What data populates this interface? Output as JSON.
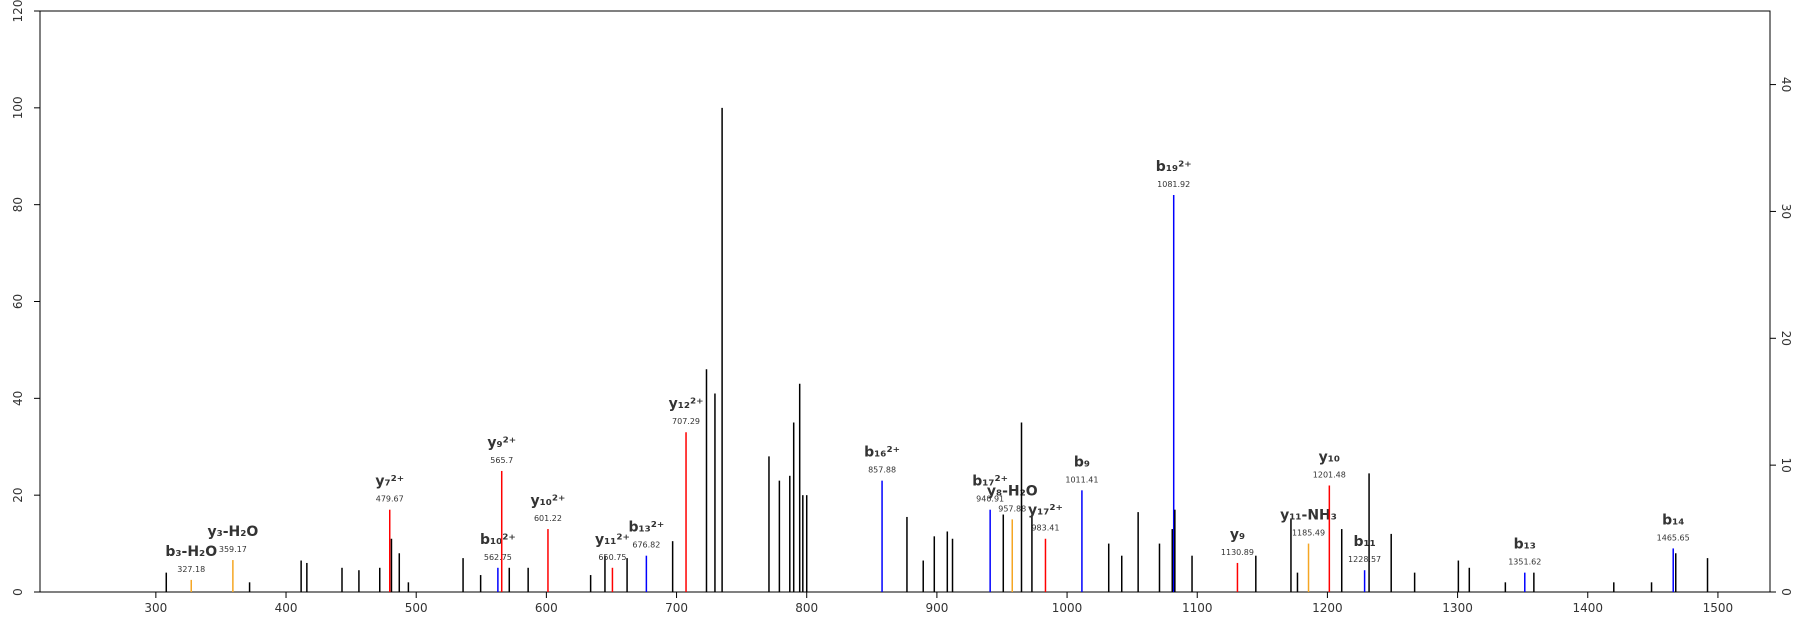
{
  "chart_data": {
    "type": "stem",
    "x": [
      308,
      327.18,
      359.17,
      372,
      411.6,
      416,
      443,
      456,
      472,
      479.67,
      481,
      487,
      494,
      536,
      549.5,
      562.75,
      565.7,
      571.5,
      586,
      601.22,
      634,
      645,
      650.75,
      662,
      676.82,
      697,
      707.29,
      723,
      729.5,
      735,
      771,
      779,
      787,
      790,
      794.6,
      797,
      800,
      857.88,
      877,
      889.5,
      898,
      908,
      912,
      940.91,
      951,
      957.88,
      965,
      973,
      983.41,
      1011.41,
      1032,
      1042,
      1054.6,
      1071,
      1080.8,
      1081.92,
      1082.8,
      1096,
      1130.89,
      1145,
      1172,
      1177,
      1185.49,
      1201.48,
      1211,
      1228.57,
      1232,
      1249,
      1267,
      1300.6,
      1309,
      1336.7,
      1351.62,
      1358.6,
      1420,
      1449,
      1465.65,
      1467.6,
      1492
    ],
    "values": [
      4,
      2.5,
      6.6,
      2,
      6.5,
      6,
      5,
      4.5,
      5,
      17,
      11,
      8,
      2,
      7,
      3.5,
      5,
      25,
      5,
      5,
      13,
      3.5,
      7.5,
      5,
      7,
      7.5,
      10.5,
      33,
      46,
      41,
      100,
      28,
      23,
      24,
      35,
      43,
      20,
      20,
      23,
      15.5,
      6.5,
      11.5,
      12.5,
      11,
      17,
      16,
      15,
      35,
      16,
      11,
      21,
      10,
      7.5,
      16.5,
      10,
      13,
      82,
      17,
      7.5,
      6,
      7.5,
      15,
      4,
      10,
      22,
      13,
      4.5,
      24.5,
      12,
      4,
      6.5,
      5,
      2,
      4,
      4,
      2,
      2,
      9,
      8,
      7
    ],
    "colors": [
      "#000000",
      "#f5a623",
      "#f5a623",
      "#000000",
      "#000000",
      "#000000",
      "#000000",
      "#000000",
      "#000000",
      "#ff0000",
      "#000000",
      "#000000",
      "#000000",
      "#000000",
      "#000000",
      "#0000ff",
      "#ff0000",
      "#000000",
      "#000000",
      "#ff0000",
      "#000000",
      "#000000",
      "#ff0000",
      "#000000",
      "#0000ff",
      "#000000",
      "#ff0000",
      "#000000",
      "#000000",
      "#000000",
      "#000000",
      "#000000",
      "#000000",
      "#000000",
      "#000000",
      "#000000",
      "#000000",
      "#0000ff",
      "#000000",
      "#000000",
      "#000000",
      "#000000",
      "#000000",
      "#0000ff",
      "#000000",
      "#f5a623",
      "#000000",
      "#000000",
      "#ff0000",
      "#0000ff",
      "#000000",
      "#000000",
      "#000000",
      "#000000",
      "#000000",
      "#0000ff",
      "#000000",
      "#000000",
      "#ff0000",
      "#000000",
      "#000000",
      "#000000",
      "#f5a623",
      "#ff0000",
      "#000000",
      "#0000ff",
      "#000000",
      "#000000",
      "#000000",
      "#000000",
      "#000000",
      "#000000",
      "#0000ff",
      "#000000",
      "#000000",
      "#000000",
      "#0000ff",
      "#000000",
      "#000000"
    ],
    "ion_labels": [
      null,
      "b₃-H₂O",
      "y₃-H₂O",
      null,
      null,
      null,
      null,
      null,
      null,
      "y₇²⁺",
      null,
      null,
      null,
      null,
      null,
      "b₁₀²⁺",
      "y₉²⁺",
      null,
      null,
      "y₁₀²⁺",
      null,
      null,
      "y₁₁²⁺",
      null,
      "b₁₃²⁺",
      null,
      "y₁₂²⁺",
      null,
      null,
      null,
      null,
      null,
      null,
      null,
      null,
      null,
      null,
      "b₁₆²⁺",
      null,
      null,
      null,
      null,
      null,
      "b₁₇²⁺",
      null,
      "y₈-H₂O",
      null,
      null,
      "y₁₇²⁺",
      "b₉",
      null,
      null,
      null,
      null,
      null,
      "b₁₉²⁺",
      null,
      null,
      "y₉",
      null,
      null,
      null,
      "y₁₁-NH₃",
      "y₁₀",
      null,
      "b₁₁",
      null,
      null,
      null,
      null,
      null,
      null,
      "b₁₃",
      null,
      null,
      null,
      "b₁₄",
      null,
      null
    ],
    "x_labels": [
      null,
      "327.18",
      "359.17",
      null,
      null,
      null,
      null,
      null,
      null,
      "479.67",
      null,
      null,
      null,
      null,
      null,
      "562.75",
      "565.7",
      null,
      null,
      "601.22",
      null,
      null,
      "650.75",
      null,
      "676.82",
      null,
      "707.29",
      null,
      null,
      null,
      null,
      null,
      null,
      null,
      null,
      null,
      null,
      "857.88",
      null,
      null,
      null,
      null,
      null,
      "940.91",
      null,
      "957.88",
      null,
      null,
      "983.41",
      "1011.41",
      null,
      null,
      null,
      null,
      null,
      "1081.92",
      null,
      null,
      "1130.89",
      null,
      null,
      null,
      "1185.49",
      "1201.48",
      null,
      "1228.57",
      null,
      null,
      null,
      null,
      null,
      null,
      "1351.62",
      null,
      null,
      null,
      "1465.65",
      null,
      null
    ],
    "xlim": [
      211,
      1540
    ],
    "xticks": [
      300,
      400,
      500,
      600,
      700,
      800,
      900,
      1000,
      1100,
      1200,
      1300,
      1400,
      1500
    ],
    "ylim": [
      0,
      120
    ],
    "yticks": [
      0,
      20,
      40,
      60,
      80,
      100,
      120
    ],
    "y2lim": [
      0,
      45.8
    ],
    "y2ticks": [
      0,
      10,
      20,
      30,
      40
    ]
  }
}
